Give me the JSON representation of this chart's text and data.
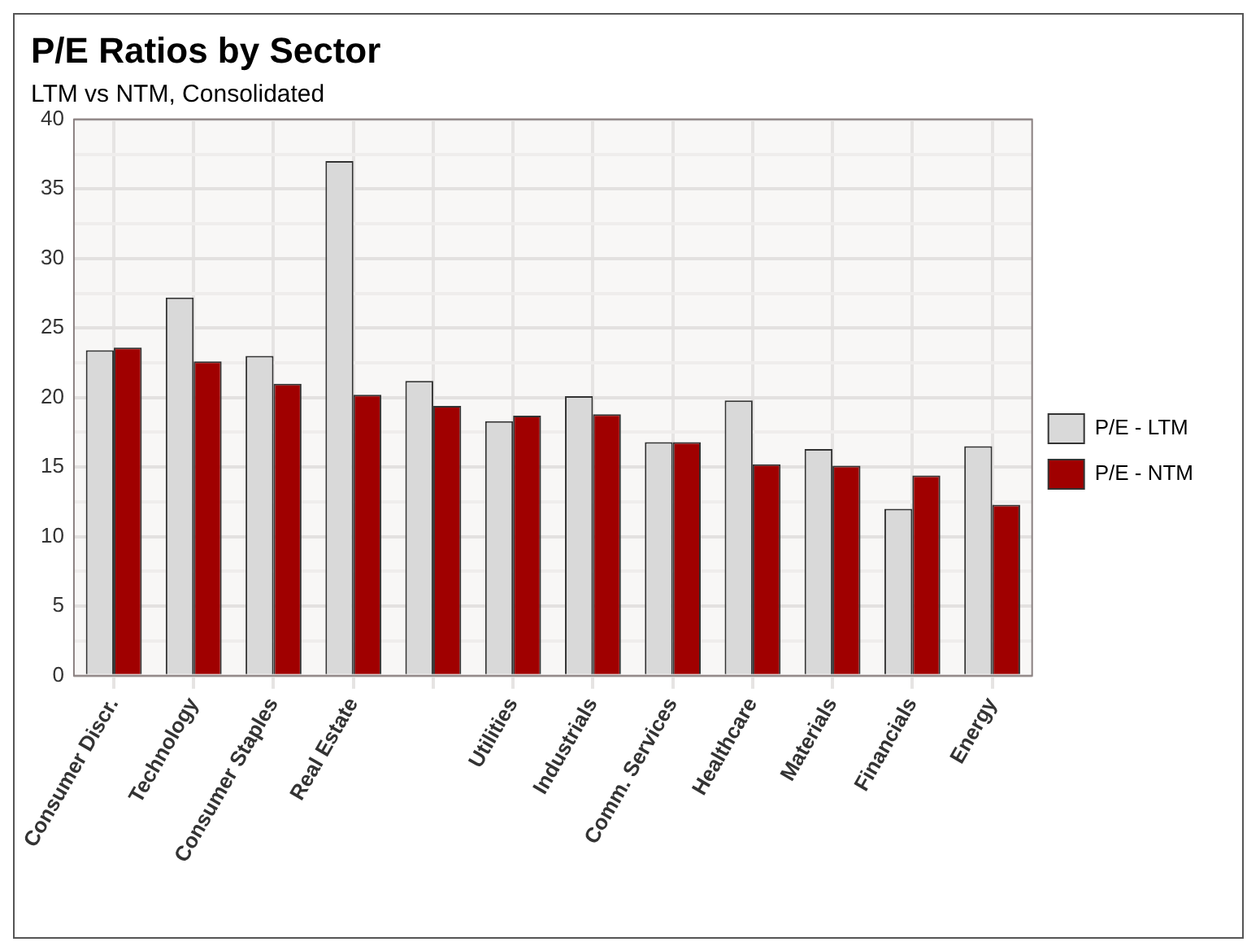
{
  "chart_data": {
    "type": "bar",
    "title": "P/E Ratios by Sector",
    "subtitle": "LTM vs NTM, Consolidated",
    "categories": [
      "Consumer Discr.",
      "Technology",
      "Consumer Staples",
      "Real Estate",
      null,
      "Utilities",
      "Industrials",
      "Comm. Services",
      "Healthcare",
      "Materials",
      "Financials",
      "Energy"
    ],
    "series": [
      {
        "name": "P/E - LTM",
        "color": "#d9d9d9",
        "values": [
          23.4,
          27.2,
          23.0,
          37.0,
          21.2,
          18.3,
          20.1,
          16.8,
          19.8,
          16.3,
          12.0,
          16.5
        ]
      },
      {
        "name": "P/E - NTM",
        "color": "#a00000",
        "values": [
          23.6,
          22.6,
          21.0,
          20.2,
          19.4,
          18.7,
          18.8,
          16.8,
          15.2,
          15.1,
          14.4,
          12.3
        ]
      }
    ],
    "ylim": [
      0,
      40
    ],
    "yticks": [
      0,
      {
        "value": 2.5,
        "label": null
      },
      5,
      {
        "value": 7.5,
        "label": null
      },
      10,
      {
        "value": 12.5,
        "label": null
      },
      15,
      {
        "value": 17.5,
        "label": null
      },
      20,
      {
        "value": 22.5,
        "label": null
      },
      25,
      {
        "value": 27.5,
        "label": null
      },
      30,
      {
        "value": 32.5,
        "label": null
      },
      35,
      {
        "value": 37.5,
        "label": null
      },
      40
    ],
    "grid": true,
    "legend": "right"
  }
}
